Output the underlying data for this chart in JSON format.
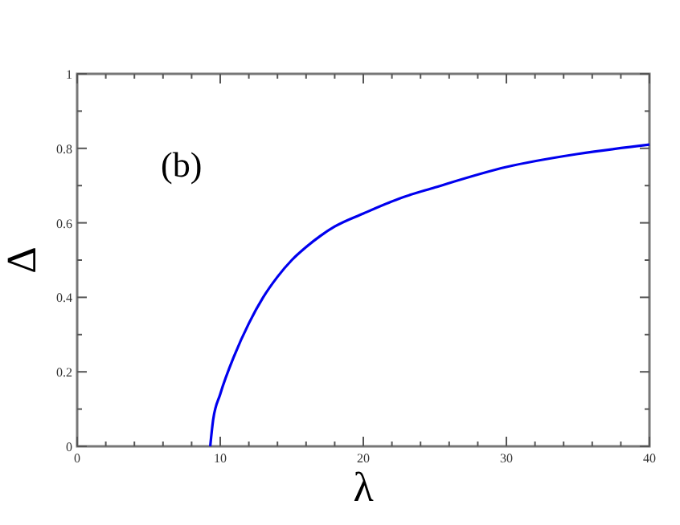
{
  "chart_data": {
    "type": "line",
    "xlabel": "λ",
    "ylabel": "Δ",
    "annotations": [
      "(b)"
    ],
    "xlim": [
      0,
      40
    ],
    "ylim": [
      0,
      1
    ],
    "xticks": [
      0,
      {
        "value": 2,
        "label": null
      },
      {
        "value": 4,
        "label": null
      },
      {
        "value": 6,
        "label": null
      },
      {
        "value": 8,
        "label": null
      },
      10,
      {
        "value": 12,
        "label": null
      },
      {
        "value": 14,
        "label": null
      },
      {
        "value": 16,
        "label": null
      },
      {
        "value": 18,
        "label": null
      },
      20,
      {
        "value": 22,
        "label": null
      },
      {
        "value": 24,
        "label": null
      },
      {
        "value": 26,
        "label": null
      },
      {
        "value": 28,
        "label": null
      },
      30,
      {
        "value": 32,
        "label": null
      },
      {
        "value": 34,
        "label": null
      },
      {
        "value": 36,
        "label": null
      },
      {
        "value": 38,
        "label": null
      },
      40
    ],
    "yticks": [
      0,
      {
        "value": 0.1,
        "label": null
      },
      0.2,
      {
        "value": 0.3,
        "label": null
      },
      0.4,
      {
        "value": 0.5,
        "label": null
      },
      0.6,
      {
        "value": 0.7,
        "label": null
      },
      0.8,
      {
        "value": 0.9,
        "label": null
      },
      1
    ],
    "grid": false,
    "marker": "none",
    "line_style": "solid",
    "series": [
      {
        "color": "#0000ee",
        "x": [
          9.3,
          9.5,
          10,
          11,
          12,
          13,
          14,
          15,
          16,
          17,
          18,
          20,
          22.5,
          25,
          30,
          35,
          40
        ],
        "values": [
          0,
          0.07,
          0.14,
          0.245,
          0.33,
          0.4,
          0.455,
          0.5,
          0.535,
          0.565,
          0.59,
          0.625,
          0.665,
          0.695,
          0.75,
          0.785,
          0.81
        ]
      }
    ]
  }
}
